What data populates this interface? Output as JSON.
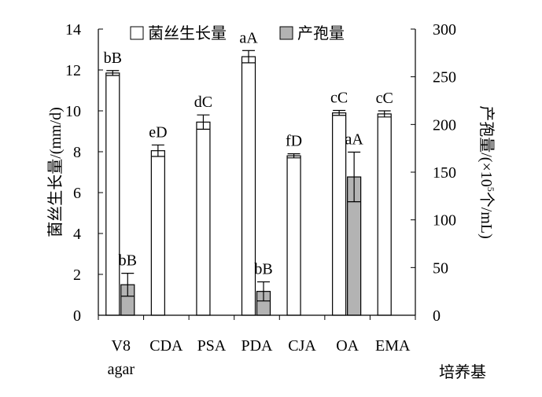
{
  "chart_data": {
    "type": "bar",
    "categories": [
      [
        "V8",
        "agar"
      ],
      [
        "CDA"
      ],
      [
        "PSA"
      ],
      [
        "PDA"
      ],
      [
        "CJA"
      ],
      [
        "OA"
      ],
      [
        "EMA"
      ]
    ],
    "xlabel": "培养基",
    "ylabel_left": "菌丝生长量/(mm/d)",
    "ylabel_right_main": "产孢量/(×10",
    "ylabel_right_sup": "5",
    "ylabel_right_tail": "个/mL)",
    "ylim_left": [
      0,
      14
    ],
    "ylim_right": [
      0,
      300
    ],
    "yticks_left": [
      "0",
      "2",
      "4",
      "6",
      "8",
      "10",
      "12",
      "14"
    ],
    "yticks_right": [
      "0",
      "50",
      "100",
      "150",
      "200",
      "250",
      "300"
    ],
    "grid": false,
    "legend_position": "top",
    "series": [
      {
        "name": "菌丝生长量",
        "axis": "left",
        "color": "#ffffff",
        "values": [
          11.85,
          8.05,
          9.45,
          12.65,
          7.8,
          9.9,
          9.85
        ],
        "errors": [
          0.12,
          0.28,
          0.35,
          0.3,
          0.1,
          0.12,
          0.15
        ],
        "labels": [
          "bB",
          "eD",
          "dC",
          "aA",
          "fD",
          "cC",
          "cC"
        ]
      },
      {
        "name": "产孢量",
        "axis": "right",
        "color": "#b3b3b3",
        "values": [
          32,
          null,
          null,
          25,
          null,
          145,
          null
        ],
        "errors": [
          12,
          null,
          null,
          10,
          null,
          26,
          null
        ],
        "labels": [
          "bB",
          "",
          "",
          "bB",
          "",
          "aA",
          ""
        ]
      }
    ]
  }
}
